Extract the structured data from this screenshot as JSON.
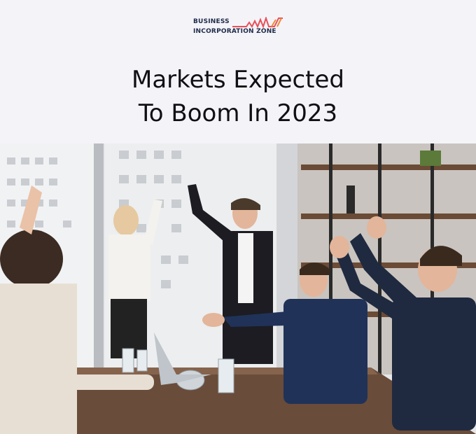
{
  "brand": {
    "line1": "BUSINESS",
    "line2": "INCORPORATION ZONE",
    "accent": "#e8505b"
  },
  "headline": {
    "line1": "Markets Expected",
    "line2": "To Boom In 2023"
  },
  "colors": {
    "background": "#f4f4f8",
    "title": "#0f0f14"
  }
}
